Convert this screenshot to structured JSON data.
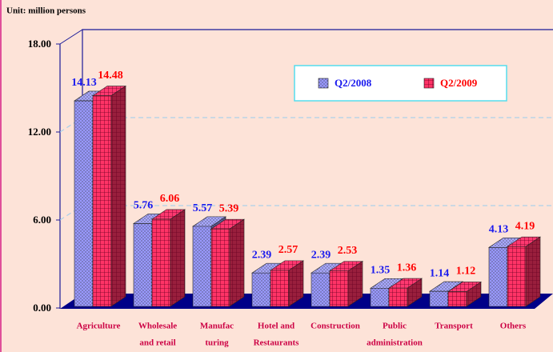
{
  "chart_data": {
    "type": "bar3d",
    "title": "Unit: million persons",
    "categories": [
      [
        "Agriculture"
      ],
      [
        "Wholesale",
        "and retail"
      ],
      [
        "Manufac",
        "turing"
      ],
      [
        "Hotel and",
        "Restaurants"
      ],
      [
        "Construction"
      ],
      [
        "Public",
        "administration"
      ],
      [
        "Transport"
      ],
      [
        "Others"
      ]
    ],
    "series": [
      {
        "name": "Q2/2008",
        "color": "#9999ff",
        "label_color": "#1a1aee",
        "values": [
          14.13,
          5.76,
          5.57,
          2.39,
          2.39,
          1.35,
          1.14,
          4.13
        ]
      },
      {
        "name": "Q2/2009",
        "color": "#ff3366",
        "label_color": "#ff0000",
        "values": [
          14.48,
          6.06,
          5.39,
          2.57,
          2.53,
          1.36,
          1.12,
          4.19
        ]
      }
    ],
    "ylim": [
      0,
      18
    ],
    "yticks": [
      {
        "value": 0,
        "label": "0.00"
      },
      {
        "value": 6,
        "label": "6.00"
      },
      {
        "value": 12,
        "label": "12.00"
      },
      {
        "value": 18,
        "label": "18.00"
      }
    ],
    "grid": true
  }
}
